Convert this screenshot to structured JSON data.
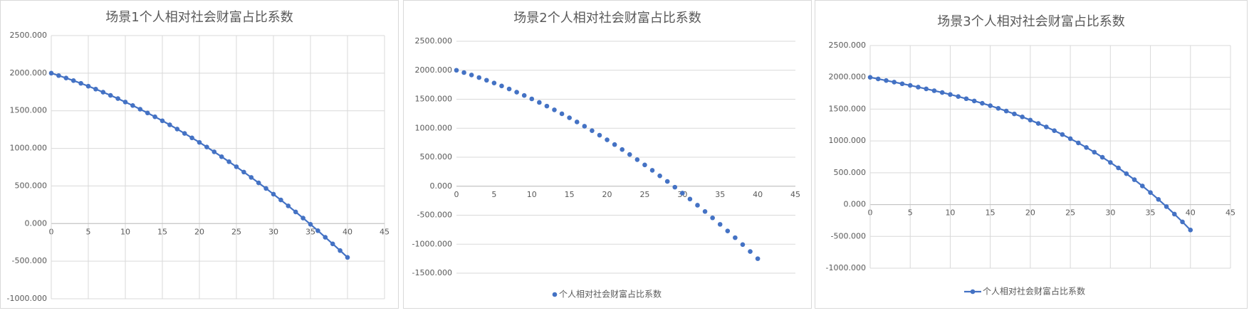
{
  "chart_data": [
    {
      "type": "line",
      "title": "场景1个人相对社会财富占比系数",
      "markers": true,
      "grid": true,
      "xgrid": true,
      "x": [
        0,
        1,
        2,
        3,
        4,
        5,
        6,
        7,
        8,
        9,
        10,
        11,
        12,
        13,
        14,
        15,
        16,
        17,
        18,
        19,
        20,
        21,
        22,
        23,
        24,
        25,
        26,
        27,
        28,
        29,
        30,
        31,
        32,
        33,
        34,
        35,
        36,
        37,
        38,
        39,
        40
      ],
      "series": [
        {
          "color": "#4472c4",
          "values": [
            2000,
            1968,
            1935,
            1901,
            1865,
            1827,
            1788,
            1747,
            1705,
            1662,
            1616,
            1570,
            1521,
            1471,
            1420,
            1367,
            1313,
            1257,
            1199,
            1140,
            1080,
            1018,
            954,
            889,
            823,
            755,
            685,
            614,
            541,
            467,
            391,
            314,
            235,
            155,
            73,
            -10,
            -95,
            -182,
            -270,
            -359,
            -450
          ]
        }
      ],
      "xlim": [
        0,
        45
      ],
      "xticks": [
        0,
        5,
        10,
        15,
        20,
        25,
        30,
        35,
        40,
        45
      ],
      "ylim": [
        -1000,
        2500
      ],
      "yticks": [
        {
          "value": -1000,
          "label": "-1000.000"
        },
        {
          "value": -500,
          "label": "-500.000"
        },
        {
          "value": 0,
          "label": "0.000"
        },
        {
          "value": 500,
          "label": "500.000"
        },
        {
          "value": 1000,
          "label": "1000.000"
        },
        {
          "value": 1500,
          "label": "1500.000"
        },
        {
          "value": 2000,
          "label": "2000.000"
        },
        {
          "value": 2500,
          "label": "2500.000"
        }
      ]
    },
    {
      "type": "scatter",
      "title": "场景2个人相对社会财富占比系数",
      "markers": true,
      "grid": true,
      "xgrid": false,
      "legend": "bottom",
      "x": [
        0,
        1,
        2,
        3,
        4,
        5,
        6,
        7,
        8,
        9,
        10,
        11,
        12,
        13,
        14,
        15,
        16,
        17,
        18,
        19,
        20,
        21,
        22,
        23,
        24,
        25,
        26,
        27,
        28,
        29,
        30,
        31,
        32,
        33,
        34,
        35,
        36,
        37,
        38,
        39,
        40
      ],
      "series": [
        {
          "name": "个人相对社会财富占比系数",
          "color": "#4472c4",
          "values": [
            2000,
            1960,
            1918,
            1874,
            1828,
            1780,
            1729,
            1677,
            1622,
            1565,
            1506,
            1445,
            1382,
            1317,
            1249,
            1180,
            1108,
            1034,
            958,
            880,
            800,
            718,
            633,
            547,
            458,
            367,
            274,
            179,
            82,
            -17,
            -119,
            -222,
            -328,
            -436,
            -546,
            -658,
            -772,
            -888,
            -1007,
            -1127,
            -1250
          ]
        }
      ],
      "xlim": [
        0,
        45
      ],
      "xticks": [
        0,
        5,
        10,
        15,
        20,
        25,
        30,
        35,
        40,
        45
      ],
      "ylim": [
        -1500,
        2500
      ],
      "yticks": [
        {
          "value": -1500,
          "label": "-1500.000"
        },
        {
          "value": -1000,
          "label": "-1000.000"
        },
        {
          "value": -500,
          "label": "-500.000"
        },
        {
          "value": 0,
          "label": "0.000"
        },
        {
          "value": 500,
          "label": "500.000"
        },
        {
          "value": 1000,
          "label": "1000.000"
        },
        {
          "value": 1500,
          "label": "1500.000"
        },
        {
          "value": 2000,
          "label": "2000.000"
        },
        {
          "value": 2500,
          "label": "2500.000"
        }
      ]
    },
    {
      "type": "line",
      "title": "场景3个人相对社会财富占比系数",
      "markers": true,
      "grid": true,
      "xgrid": true,
      "legend": "bottom",
      "x": [
        0,
        1,
        2,
        3,
        4,
        5,
        6,
        7,
        8,
        9,
        10,
        11,
        12,
        13,
        14,
        15,
        16,
        17,
        18,
        19,
        20,
        21,
        22,
        23,
        24,
        25,
        26,
        27,
        28,
        29,
        30,
        31,
        32,
        33,
        34,
        35,
        36,
        37,
        38,
        39,
        40
      ],
      "series": [
        {
          "name": "个人相对社会财富占比系数",
          "color": "#4472c4",
          "values": [
            2000,
            1975,
            1950,
            1925,
            1899,
            1873,
            1846,
            1819,
            1790,
            1761,
            1730,
            1698,
            1664,
            1629,
            1592,
            1554,
            1513,
            1470,
            1425,
            1378,
            1328,
            1275,
            1220,
            1162,
            1101,
            1036,
            969,
            897,
            823,
            744,
            662,
            576,
            485,
            391,
            292,
            189,
            81,
            -32,
            -150,
            -272,
            -400
          ]
        }
      ],
      "xlim": [
        0,
        45
      ],
      "xticks": [
        0,
        5,
        10,
        15,
        20,
        25,
        30,
        35,
        40,
        45
      ],
      "ylim": [
        -1000,
        2500
      ],
      "yticks": [
        {
          "value": -1000,
          "label": "-1000.000"
        },
        {
          "value": -500,
          "label": "-500.000"
        },
        {
          "value": 0,
          "label": "0.000"
        },
        {
          "value": 500,
          "label": "500.000"
        },
        {
          "value": 1000,
          "label": "1000.000"
        },
        {
          "value": 1500,
          "label": "1500.000"
        },
        {
          "value": 2000,
          "label": "2000.000"
        },
        {
          "value": 2500,
          "label": "2500.000"
        }
      ]
    }
  ]
}
